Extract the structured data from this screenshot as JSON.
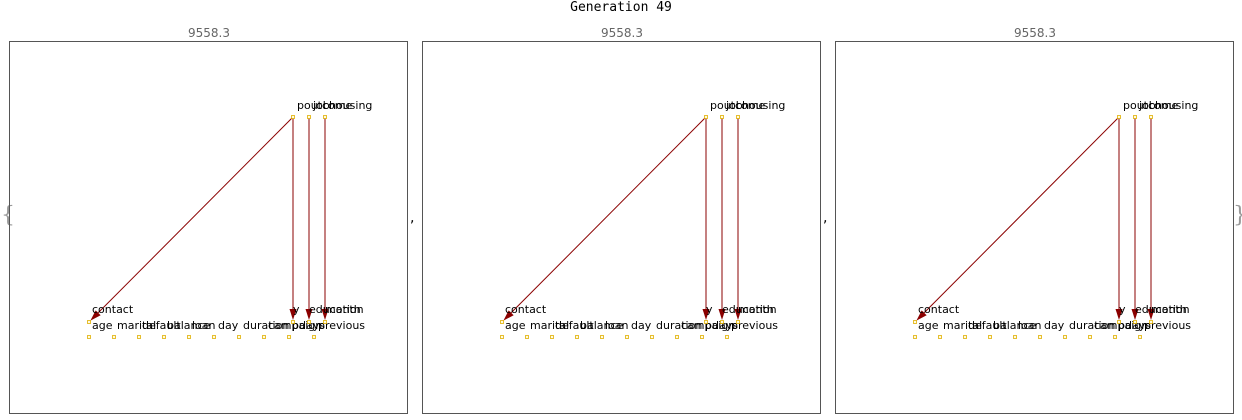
{
  "title": "Generation 49",
  "brace_open": "{",
  "brace_close": "}",
  "separator": ",",
  "colors": {
    "edge": "#8b0000",
    "node_border": "#e0b000",
    "node_fill": "#fffbe0",
    "frame": "#555555",
    "score_text": "#666666"
  },
  "panels": [
    {
      "score": "9558.3"
    },
    {
      "score": "9558.3"
    },
    {
      "score": "9558.3"
    }
  ],
  "graph": {
    "nodes": [
      "age",
      "marital",
      "default",
      "balance",
      "loan",
      "day",
      "duration",
      "campaign",
      "pdays",
      "previous",
      "contact",
      "y",
      "education",
      "month",
      "poutcome",
      "job",
      "housing"
    ],
    "edges": [
      {
        "from": "poutcome",
        "to": "contact"
      },
      {
        "from": "poutcome",
        "to": "y"
      },
      {
        "from": "job",
        "to": "education"
      },
      {
        "from": "housing",
        "to": "month"
      }
    ]
  }
}
